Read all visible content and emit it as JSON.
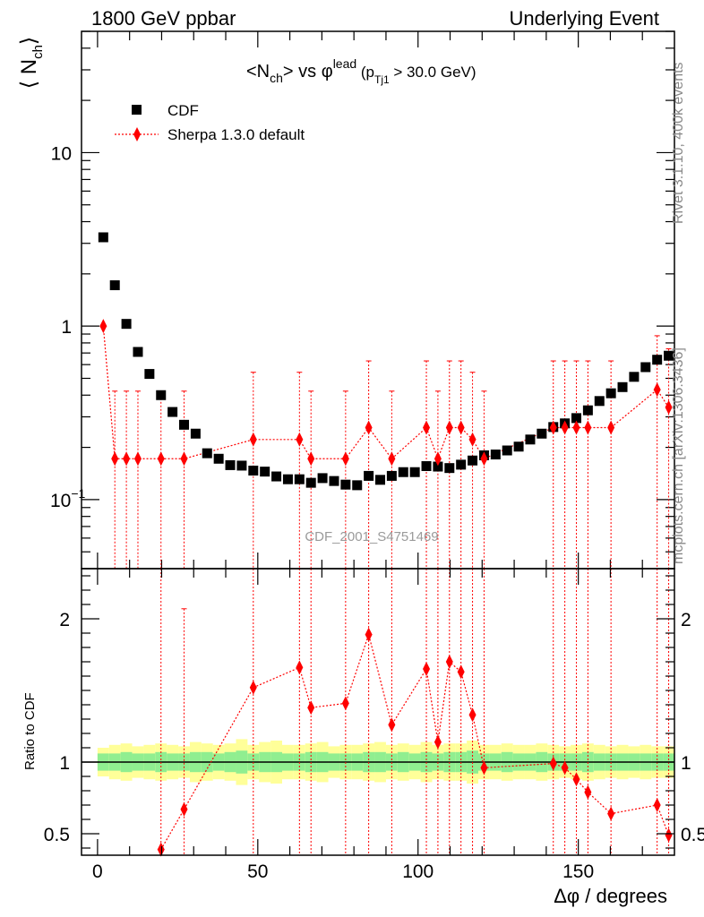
{
  "header": {
    "left": "1800 GeV ppbar",
    "right": "Underlying Event"
  },
  "side_text": {
    "rivet": "Rivet 3.1.10,  400k events",
    "mcplots": "mcplots.cern.ch [arXiv:1306.3436]"
  },
  "watermark": "CDF_2001_S4751469",
  "chart_data": [
    {
      "type": "scatter",
      "title_parts": {
        "pre": "<N",
        "sub1": "ch",
        "mid": "> vs ",
        "phi": "φ",
        "sup": "lead",
        "open": " (p",
        "sub2": "Tj1",
        "cond": " > 30.0 GeV)"
      },
      "ylabel": {
        "main": "⟨ N",
        "sub": "ch",
        "close": "⟩"
      },
      "ylog": true,
      "ylim": [
        0.04,
        50
      ],
      "xlim": [
        -5,
        180
      ],
      "yticks": [
        {
          "value": 0.1,
          "label": "10",
          "sup": "−1"
        },
        {
          "value": 1,
          "label": "1"
        },
        {
          "value": 10,
          "label": "10"
        }
      ],
      "legend_position": "top-left",
      "series": [
        {
          "name": "CDF",
          "color": "#000000",
          "marker": "square",
          "x": [
            1.8,
            5.4,
            9.0,
            12.6,
            16.2,
            19.8,
            23.4,
            27.0,
            30.6,
            34.2,
            37.8,
            41.4,
            45.0,
            48.6,
            52.2,
            55.8,
            59.4,
            63.0,
            66.6,
            70.2,
            73.8,
            77.4,
            81.0,
            84.6,
            88.2,
            91.8,
            95.4,
            99.0,
            102.6,
            106.2,
            109.8,
            113.4,
            117.0,
            120.6,
            124.2,
            127.8,
            131.4,
            135.0,
            138.6,
            142.2,
            145.8,
            149.4,
            153.0,
            156.6,
            160.2,
            163.8,
            167.4,
            171.0,
            174.6,
            178.2
          ],
          "y": [
            3.25,
            1.72,
            1.03,
            0.71,
            0.53,
            0.4,
            0.32,
            0.27,
            0.24,
            0.185,
            0.172,
            0.158,
            0.157,
            0.147,
            0.145,
            0.136,
            0.131,
            0.131,
            0.125,
            0.133,
            0.128,
            0.122,
            0.121,
            0.137,
            0.13,
            0.137,
            0.144,
            0.144,
            0.156,
            0.155,
            0.152,
            0.159,
            0.168,
            0.18,
            0.182,
            0.192,
            0.202,
            0.222,
            0.24,
            0.262,
            0.275,
            0.295,
            0.327,
            0.37,
            0.41,
            0.445,
            0.51,
            0.58,
            0.64,
            0.675
          ]
        },
        {
          "name": "Sherpa 1.3.0 default",
          "color": "#ff0000",
          "marker": "diamond",
          "x": [
            1.8,
            5.4,
            9.0,
            12.6,
            19.8,
            27.0,
            48.6,
            63.0,
            66.6,
            77.4,
            84.6,
            91.8,
            102.6,
            106.2,
            109.8,
            113.4,
            117.0,
            120.6,
            142.2,
            145.8,
            149.4,
            153.0,
            160.2,
            174.6,
            178.2
          ],
          "y": [
            1.0,
            0.172,
            0.172,
            0.172,
            0.172,
            0.172,
            0.222,
            0.222,
            0.172,
            0.172,
            0.26,
            0.172,
            0.26,
            0.172,
            0.26,
            0.26,
            0.222,
            0.172,
            0.26,
            0.26,
            0.26,
            0.26,
            0.26,
            0.43,
            0.34
          ],
          "err_up": [
            0.0,
            0.25,
            0.25,
            0.25,
            0.25,
            0.25,
            0.32,
            0.32,
            0.25,
            0.25,
            0.37,
            0.25,
            0.37,
            0.25,
            0.37,
            0.37,
            0.32,
            0.25,
            0.37,
            0.37,
            0.37,
            0.37,
            0.37,
            0.45,
            0.4
          ]
        }
      ]
    },
    {
      "type": "scatter",
      "ylabel": "Ratio to CDF",
      "xlabel": "Δφ / degrees",
      "ylim": [
        0.35,
        2.35
      ],
      "xlim": [
        -5,
        180
      ],
      "xticks": [
        0,
        50,
        100,
        150
      ],
      "yticks": [
        0.5,
        1,
        2
      ],
      "reference_line": 1,
      "band_colors": {
        "inner": "#90ee90",
        "outer": "#ffff99"
      },
      "bands": {
        "inner": [
          0.06,
          0.06,
          0.07,
          0.06,
          0.06,
          0.07,
          0.06,
          0.06,
          0.07,
          0.07,
          0.06,
          0.07,
          0.08,
          0.06,
          0.07,
          0.07,
          0.06,
          0.06,
          0.07,
          0.07,
          0.06,
          0.06,
          0.06,
          0.07,
          0.07,
          0.06,
          0.07,
          0.06,
          0.07,
          0.06,
          0.07,
          0.07,
          0.08,
          0.06,
          0.06,
          0.07,
          0.06,
          0.06,
          0.07,
          0.06,
          0.06,
          0.06,
          0.07,
          0.06,
          0.06,
          0.06,
          0.06,
          0.06,
          0.06,
          0.06
        ],
        "outer": [
          0.1,
          0.12,
          0.13,
          0.11,
          0.12,
          0.13,
          0.12,
          0.11,
          0.14,
          0.13,
          0.12,
          0.13,
          0.16,
          0.12,
          0.14,
          0.15,
          0.12,
          0.12,
          0.13,
          0.14,
          0.11,
          0.12,
          0.12,
          0.13,
          0.14,
          0.12,
          0.13,
          0.12,
          0.14,
          0.12,
          0.13,
          0.13,
          0.15,
          0.12,
          0.12,
          0.13,
          0.12,
          0.12,
          0.13,
          0.12,
          0.11,
          0.12,
          0.13,
          0.12,
          0.11,
          0.12,
          0.11,
          0.12,
          0.11,
          0.11
        ]
      },
      "series": [
        {
          "name": "Sherpa 1.3.0 default",
          "color": "#ff0000",
          "marker": "diamond",
          "x": [
            19.8,
            27.0,
            48.6,
            63.0,
            66.6,
            77.4,
            84.6,
            91.8,
            102.6,
            106.2,
            109.8,
            113.4,
            117.0,
            120.6,
            142.2,
            145.8,
            149.4,
            153.0,
            160.2,
            174.6,
            178.2
          ],
          "y": [
            0.39,
            0.67,
            1.52,
            1.66,
            1.38,
            1.41,
            1.89,
            1.26,
            1.65,
            1.14,
            1.7,
            1.63,
            1.33,
            0.96,
            0.99,
            0.96,
            0.88,
            0.79,
            0.64,
            0.7,
            0.49
          ],
          "err_up": [
            2.0,
            1.4,
            2.0,
            2.0,
            2.0,
            2.0,
            2.0,
            2.0,
            2.0,
            2.0,
            2.0,
            2.0,
            2.0,
            2.0,
            1.85,
            1.8,
            2.0,
            2.0,
            2.0,
            2.0,
            2.0
          ],
          "err_dn": [
            0.39,
            0.67,
            1.52,
            1.66,
            1.38,
            1.41,
            1.89,
            1.26,
            1.65,
            1.14,
            1.7,
            1.63,
            1.33,
            0.96,
            0.99,
            0.96,
            0.88,
            0.79,
            0.64,
            0.7,
            0.49
          ]
        }
      ]
    }
  ]
}
